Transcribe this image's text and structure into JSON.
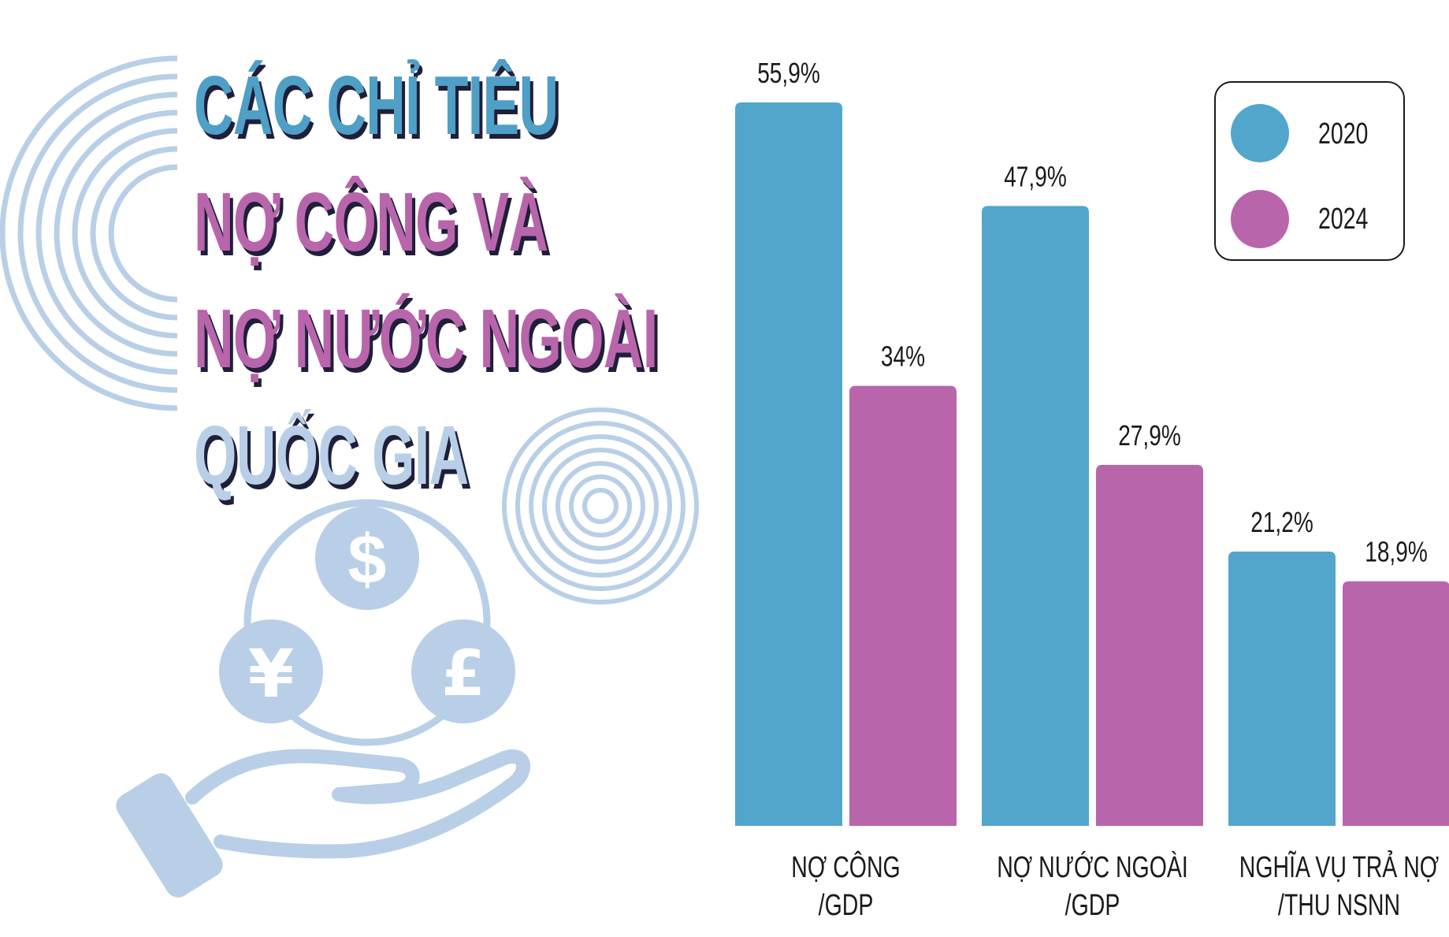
{
  "title_lines": [
    "CÁC CHỈ TIÊU",
    "NỢ CÔNG VÀ",
    "NỢ NƯỚC NGOÀI",
    "QUỐC GIA"
  ],
  "colors": {
    "series_2020": "#52a6cc",
    "series_2024": "#b865ac",
    "title_blue": "#4f9fc6",
    "title_purple": "#b865ac",
    "title_light": "#b8cfe7",
    "decor": "#b8cfe7",
    "text": "#1a1a1a"
  },
  "icons": [
    "dollar-coin-icon",
    "yen-coin-icon",
    "pound-coin-icon",
    "open-hand-icon"
  ],
  "chart_data": {
    "type": "bar",
    "categories": [
      [
        "NỢ CÔNG",
        "/GDP"
      ],
      [
        "NỢ NƯỚC NGOÀI",
        "/GDP"
      ],
      [
        "NGHĨA VỤ TRẢ NỢ",
        "/THU NSNN"
      ]
    ],
    "series": [
      {
        "name": "2020",
        "values": [
          55.9,
          47.9,
          21.2
        ],
        "labels": [
          "55,9%",
          "47,9%",
          "21,2%"
        ]
      },
      {
        "name": "2024",
        "values": [
          34,
          27.9,
          18.9
        ],
        "labels": [
          "34%",
          "27,9%",
          "18,9%"
        ]
      }
    ],
    "ylim": [
      0,
      55.9
    ],
    "legend": "top-right",
    "grid": false
  }
}
